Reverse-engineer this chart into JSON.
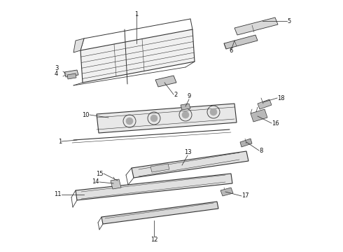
{
  "background_color": "#ffffff",
  "fig_width": 4.9,
  "fig_height": 3.6,
  "dpi": 100,
  "line_color": "#333333",
  "text_color": "#111111",
  "label_fontsize": 6.0
}
